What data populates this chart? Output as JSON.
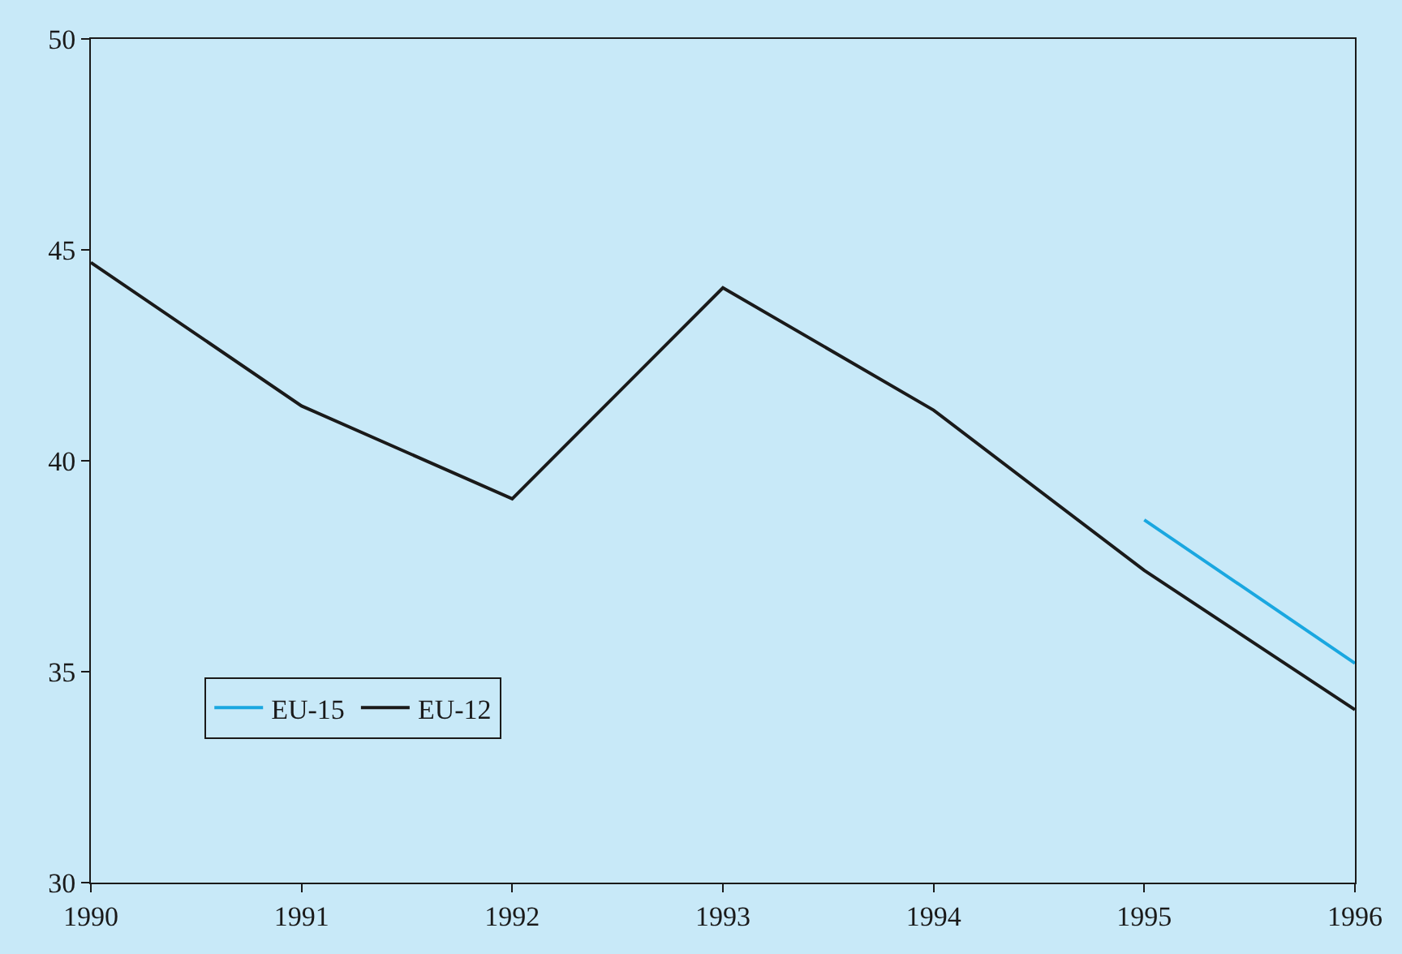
{
  "chart_data": {
    "type": "line",
    "x": [
      1990,
      1991,
      1992,
      1993,
      1994,
      1995,
      1996
    ],
    "series": [
      {
        "name": "EU-15",
        "color": "#1aa7e0",
        "values": [
          null,
          null,
          null,
          null,
          null,
          38.6,
          35.2
        ]
      },
      {
        "name": "EU-12",
        "color": "#1a1a1a",
        "values": [
          44.7,
          41.3,
          39.1,
          44.1,
          41.2,
          37.4,
          34.1
        ]
      }
    ],
    "xlim": [
      1990,
      1996
    ],
    "xticks": [
      1990,
      1991,
      1992,
      1993,
      1994,
      1995,
      1996
    ],
    "ylim": [
      30,
      50
    ],
    "yticks": [
      30,
      35,
      40,
      45,
      50
    ],
    "grid": false,
    "legend": "bottom left",
    "marker": "none",
    "line_style": "solid"
  }
}
